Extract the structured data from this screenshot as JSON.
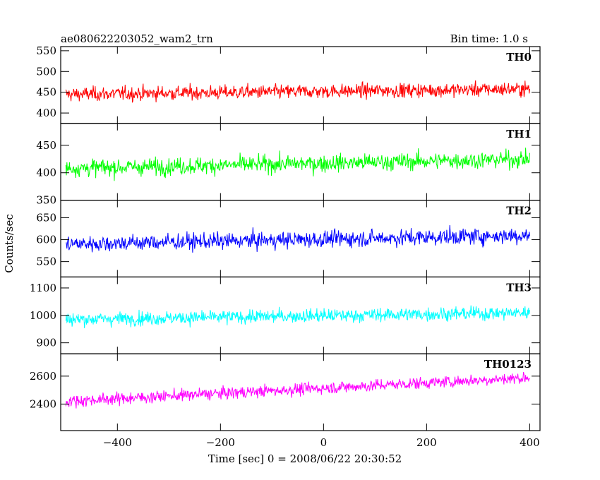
{
  "chart_data": {
    "type": "line",
    "title": "ae080622203052_wam2_trn",
    "subtitle": "Bin time: 1.0 s",
    "xlabel": "Time [sec] 0 = 2008/06/22 20:30:52",
    "ylabel": "Counts/sec",
    "xlim": [
      -510,
      420
    ],
    "x_ticks": [
      -400,
      -200,
      0,
      200,
      400
    ],
    "x_tick_labels": [
      "−400",
      "−200",
      "0",
      "200",
      "400"
    ],
    "x_range": [
      -500,
      400
    ],
    "bin_time": 1.0,
    "grid": false,
    "panels": [
      {
        "name": "TH0",
        "color": "#ff0000",
        "ylim": [
          375,
          560
        ],
        "yticks": [
          400,
          450,
          500,
          550
        ],
        "mean_start": 445,
        "mean_end": 458,
        "noise": 22
      },
      {
        "name": "TH1",
        "color": "#00ff00",
        "ylim": [
          350,
          490
        ],
        "yticks": [
          350,
          400,
          450
        ],
        "mean_start": 408,
        "mean_end": 425,
        "noise": 20
      },
      {
        "name": "TH2",
        "color": "#0000ff",
        "ylim": [
          515,
          690
        ],
        "yticks": [
          550,
          600,
          650
        ],
        "mean_start": 590,
        "mean_end": 610,
        "noise": 24
      },
      {
        "name": "TH3",
        "color": "#00ffff",
        "ylim": [
          860,
          1140
        ],
        "yticks": [
          900,
          1000,
          1100
        ],
        "mean_start": 985,
        "mean_end": 1010,
        "noise": 32
      },
      {
        "name": "TH0123",
        "color": "#ff00ff",
        "ylim": [
          2210,
          2760
        ],
        "yticks": [
          2400,
          2600
        ],
        "mean_start": 2420,
        "mean_end": 2590,
        "noise": 55
      }
    ]
  }
}
